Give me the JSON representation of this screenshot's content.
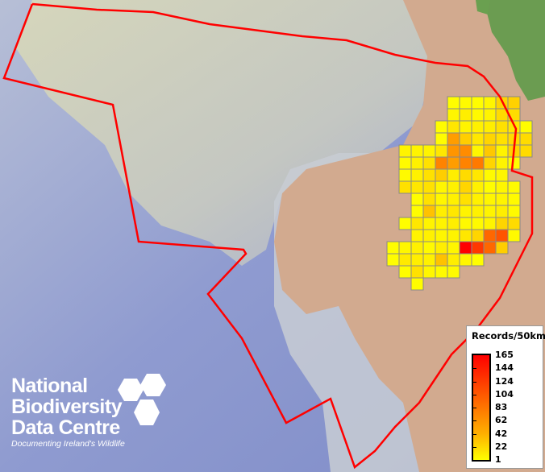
{
  "legend": {
    "title": "Records/50km",
    "labels": [
      "165",
      "144",
      "124",
      "104",
      "83",
      "62",
      "42",
      "22",
      "1"
    ],
    "min": 1,
    "max": 165,
    "colors": {
      "low": "#ffff00",
      "mid": "#ff9900",
      "high": "#ff0000"
    }
  },
  "logo": {
    "line1": "National",
    "line2": "Biodiversity",
    "line3": "Data Centre",
    "tagline": "Documenting Ireland's Wildlife"
  },
  "boundary_color": "#ff0000",
  "grid_cell_size_km": 50,
  "grid": [
    {
      "row": 0,
      "start_col": 5,
      "values": [
        3,
        5,
        3,
        8,
        35,
        38
      ]
    },
    {
      "row": 1,
      "start_col": 5,
      "values": [
        8,
        15,
        5,
        10,
        30,
        28
      ]
    },
    {
      "row": 2,
      "start_col": 4,
      "values": [
        3,
        20,
        10,
        12,
        15,
        25,
        20,
        3
      ]
    },
    {
      "row": 3,
      "start_col": 4,
      "values": [
        3,
        80,
        40,
        20,
        35,
        25,
        30,
        30
      ]
    },
    {
      "row": 4,
      "start_col": 1,
      "values": [
        10,
        10,
        10,
        20,
        85,
        90,
        8,
        45,
        10,
        35,
        30
      ]
    },
    {
      "row": 5,
      "start_col": 1,
      "values": [
        5,
        12,
        25,
        95,
        80,
        95,
        100,
        35,
        10,
        3
      ]
    },
    {
      "row": 6,
      "start_col": 1,
      "values": [
        5,
        12,
        25,
        40,
        15,
        30,
        20,
        5,
        8
      ]
    },
    {
      "row": 7,
      "start_col": 1,
      "values": [
        25,
        20,
        25,
        8,
        12,
        35,
        12,
        3,
        8,
        5
      ]
    },
    {
      "row": 8,
      "start_col": 2,
      "values": [
        3,
        25,
        8,
        12,
        25,
        12,
        8,
        10,
        5
      ]
    },
    {
      "row": 9,
      "start_col": 2,
      "values": [
        3,
        50,
        15,
        20,
        10,
        12,
        10,
        15,
        5
      ]
    },
    {
      "row": 10,
      "start_col": 1,
      "values": [
        3,
        20,
        10,
        10,
        15,
        5,
        5,
        10,
        35,
        30
      ]
    },
    {
      "row": 11,
      "start_col": 2,
      "values": [
        10,
        12,
        8,
        10,
        20,
        35,
        110,
        120,
        5
      ]
    },
    {
      "row": 12,
      "start_col": 0,
      "values": [
        3,
        8,
        12,
        5,
        15,
        8,
        165,
        135,
        110,
        40
      ]
    },
    {
      "row": 13,
      "start_col": 0,
      "values": [
        3,
        18,
        15,
        12,
        50,
        15,
        8,
        3
      ]
    },
    {
      "row": 14,
      "start_col": 1,
      "values": [
        3,
        25,
        8,
        5,
        5
      ]
    },
    {
      "row": 15,
      "start_col": 2,
      "values": [
        3
      ]
    }
  ]
}
